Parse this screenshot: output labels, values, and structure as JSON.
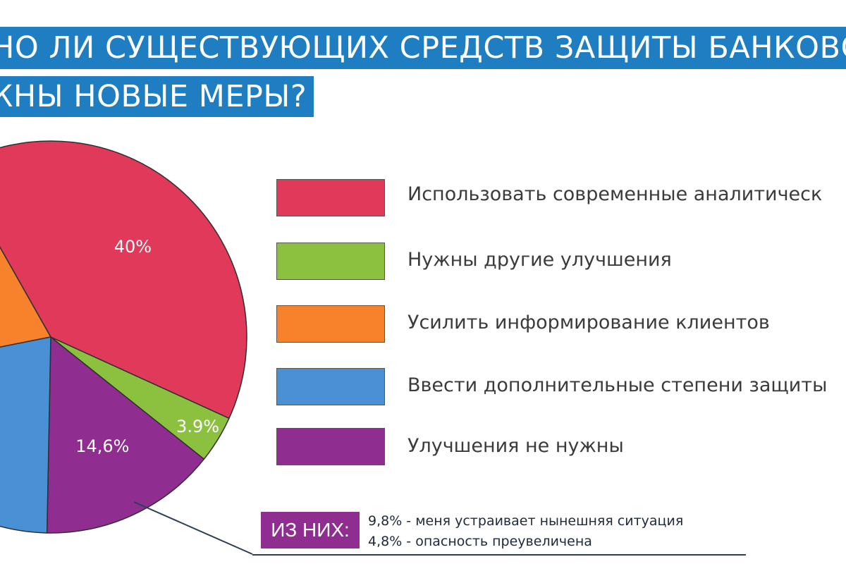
{
  "title": {
    "line1": "ЧНО ЛИ СУЩЕСТВУЮЩИХ СРЕДСТВ ЗАЩИТЫ БАНКОВСК",
    "line2": "ЖНЫ НОВЫЕ МЕРЫ?",
    "bar_color": "#1f7dc1"
  },
  "chart_data": {
    "type": "pie",
    "slices": [
      {
        "label": "Использовать современные аналитическ",
        "value": 40,
        "value_label": "40%",
        "color": "#e0395a"
      },
      {
        "label": "Нужны другие улучшения",
        "value": 3.9,
        "value_label": "3.9%",
        "color": "#8cc13f"
      },
      {
        "label": "Усилить информирование клиентов",
        "value": null,
        "value_label": "",
        "color": "#f7822b"
      },
      {
        "label": "Ввести дополнительные степени защиты",
        "value": null,
        "value_label": "",
        "color": "#4a90d4"
      },
      {
        "label": "Улучшения не нужны",
        "value": 14.6,
        "value_label": "14,6%",
        "color": "#8f2d91"
      }
    ],
    "legend_position": "right"
  },
  "breakdown": {
    "badge": "ИЗ НИХ:",
    "lines": [
      "9,8% - меня устраивает нынешняя ситуация",
      "4,8% - опасность преувеличена"
    ]
  }
}
